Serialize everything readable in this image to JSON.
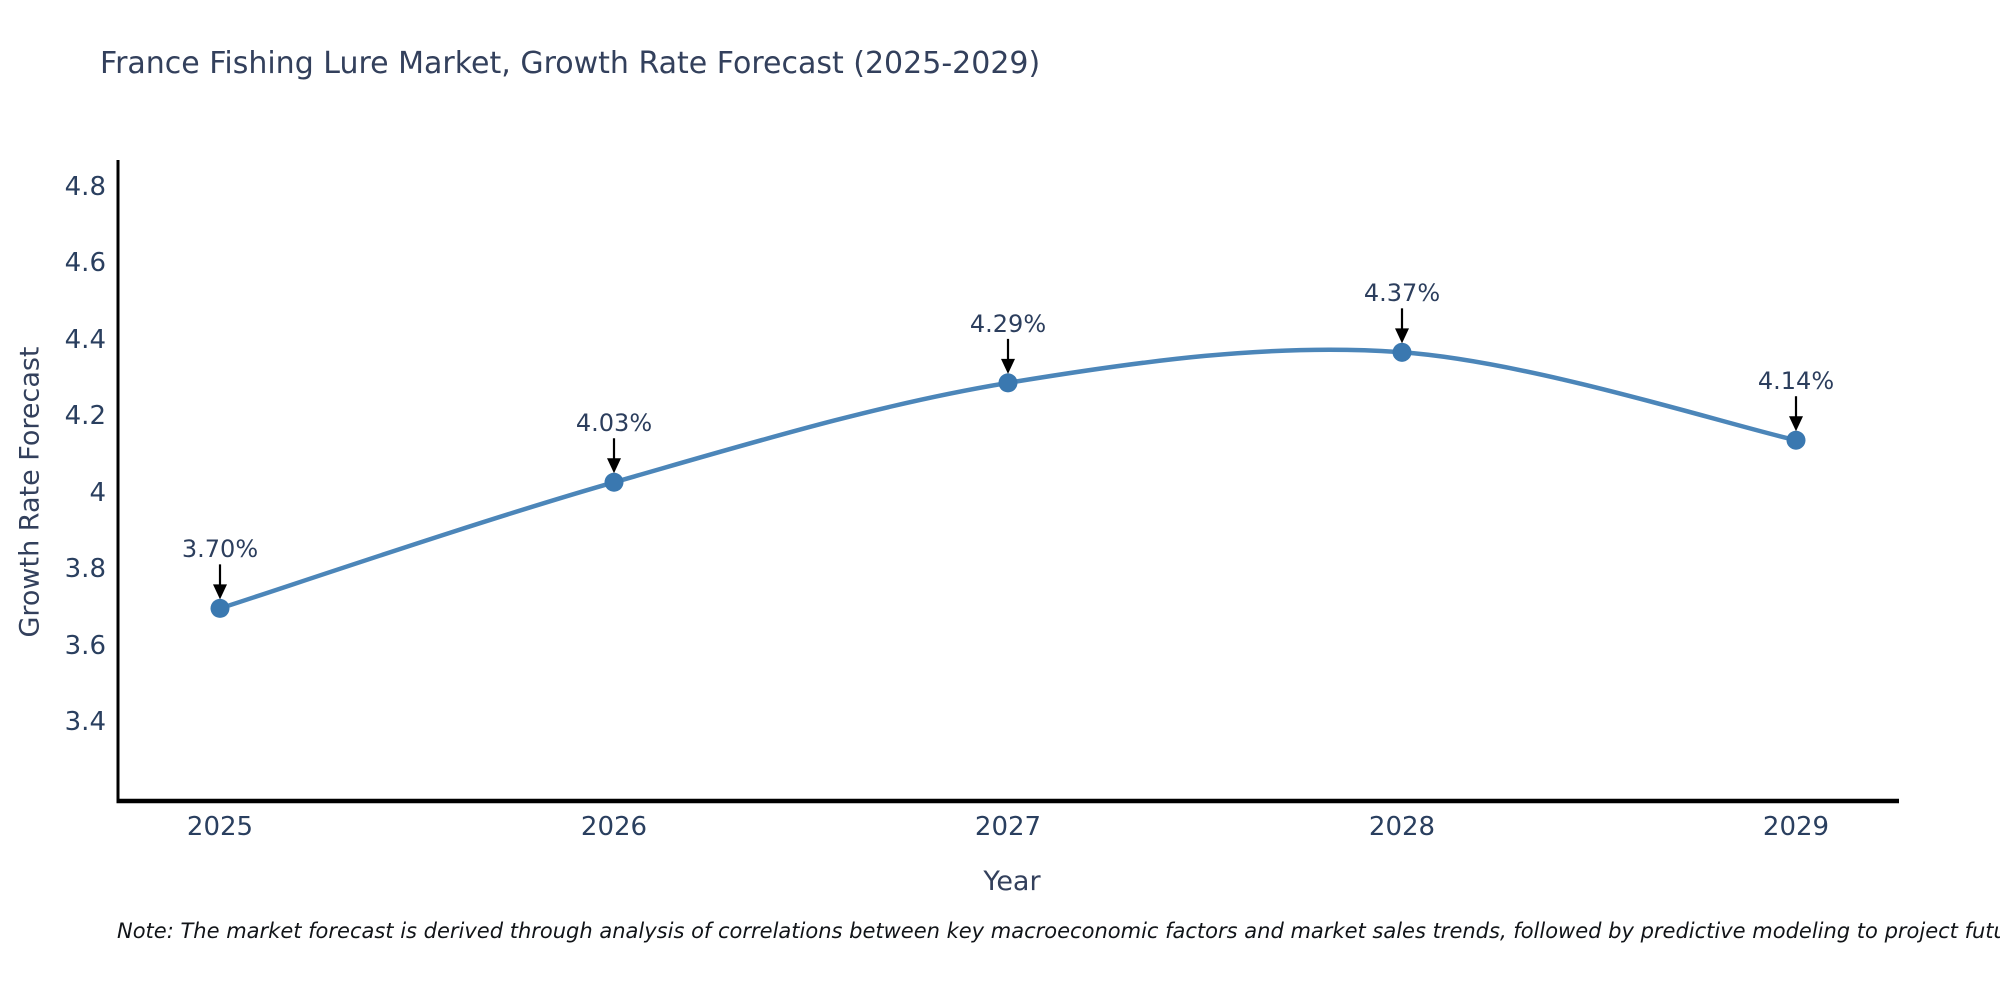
{
  "title": "France Fishing Lure Market, Growth Rate Forecast (2025-2029)",
  "note": "Note: The market forecast is derived through analysis of correlations between key macroeconomic factors and market sales trends, followed by predictive modeling to project future sales",
  "chart_data": {
    "type": "line",
    "title": "France Fishing Lure Market, Growth Rate Forecast (2025-2029)",
    "xlabel": "Year",
    "ylabel": "Growth Rate Forecast",
    "x": [
      2025,
      2026,
      2027,
      2028,
      2029
    ],
    "x_tick_labels": [
      "2025",
      "2026",
      "2027",
      "2028",
      "2029"
    ],
    "series": [
      {
        "name": "Growth Rate Forecast",
        "values": [
          3.7,
          4.03,
          4.29,
          4.37,
          4.14
        ]
      }
    ],
    "point_labels": [
      "3.70%",
      "4.03%",
      "4.29%",
      "4.37%",
      "4.14%"
    ],
    "y_ticks": [
      3.4,
      3.6,
      3.8,
      4,
      4.2,
      4.4,
      4.6,
      4.8
    ],
    "y_tick_labels": [
      "3.4",
      "3.6",
      "3.8",
      "4",
      "4.2",
      "4.4",
      "4.6",
      "4.8"
    ],
    "ylim": [
      3.2,
      4.88
    ],
    "line_shape": "spline",
    "grid": false,
    "legend": "none",
    "colors": {
      "line": "#4c86b9",
      "marker": "#3a78b0",
      "arrow": "#000000",
      "axis": "#000000",
      "text": "#2a3f5f",
      "background": "#ffffff"
    }
  }
}
